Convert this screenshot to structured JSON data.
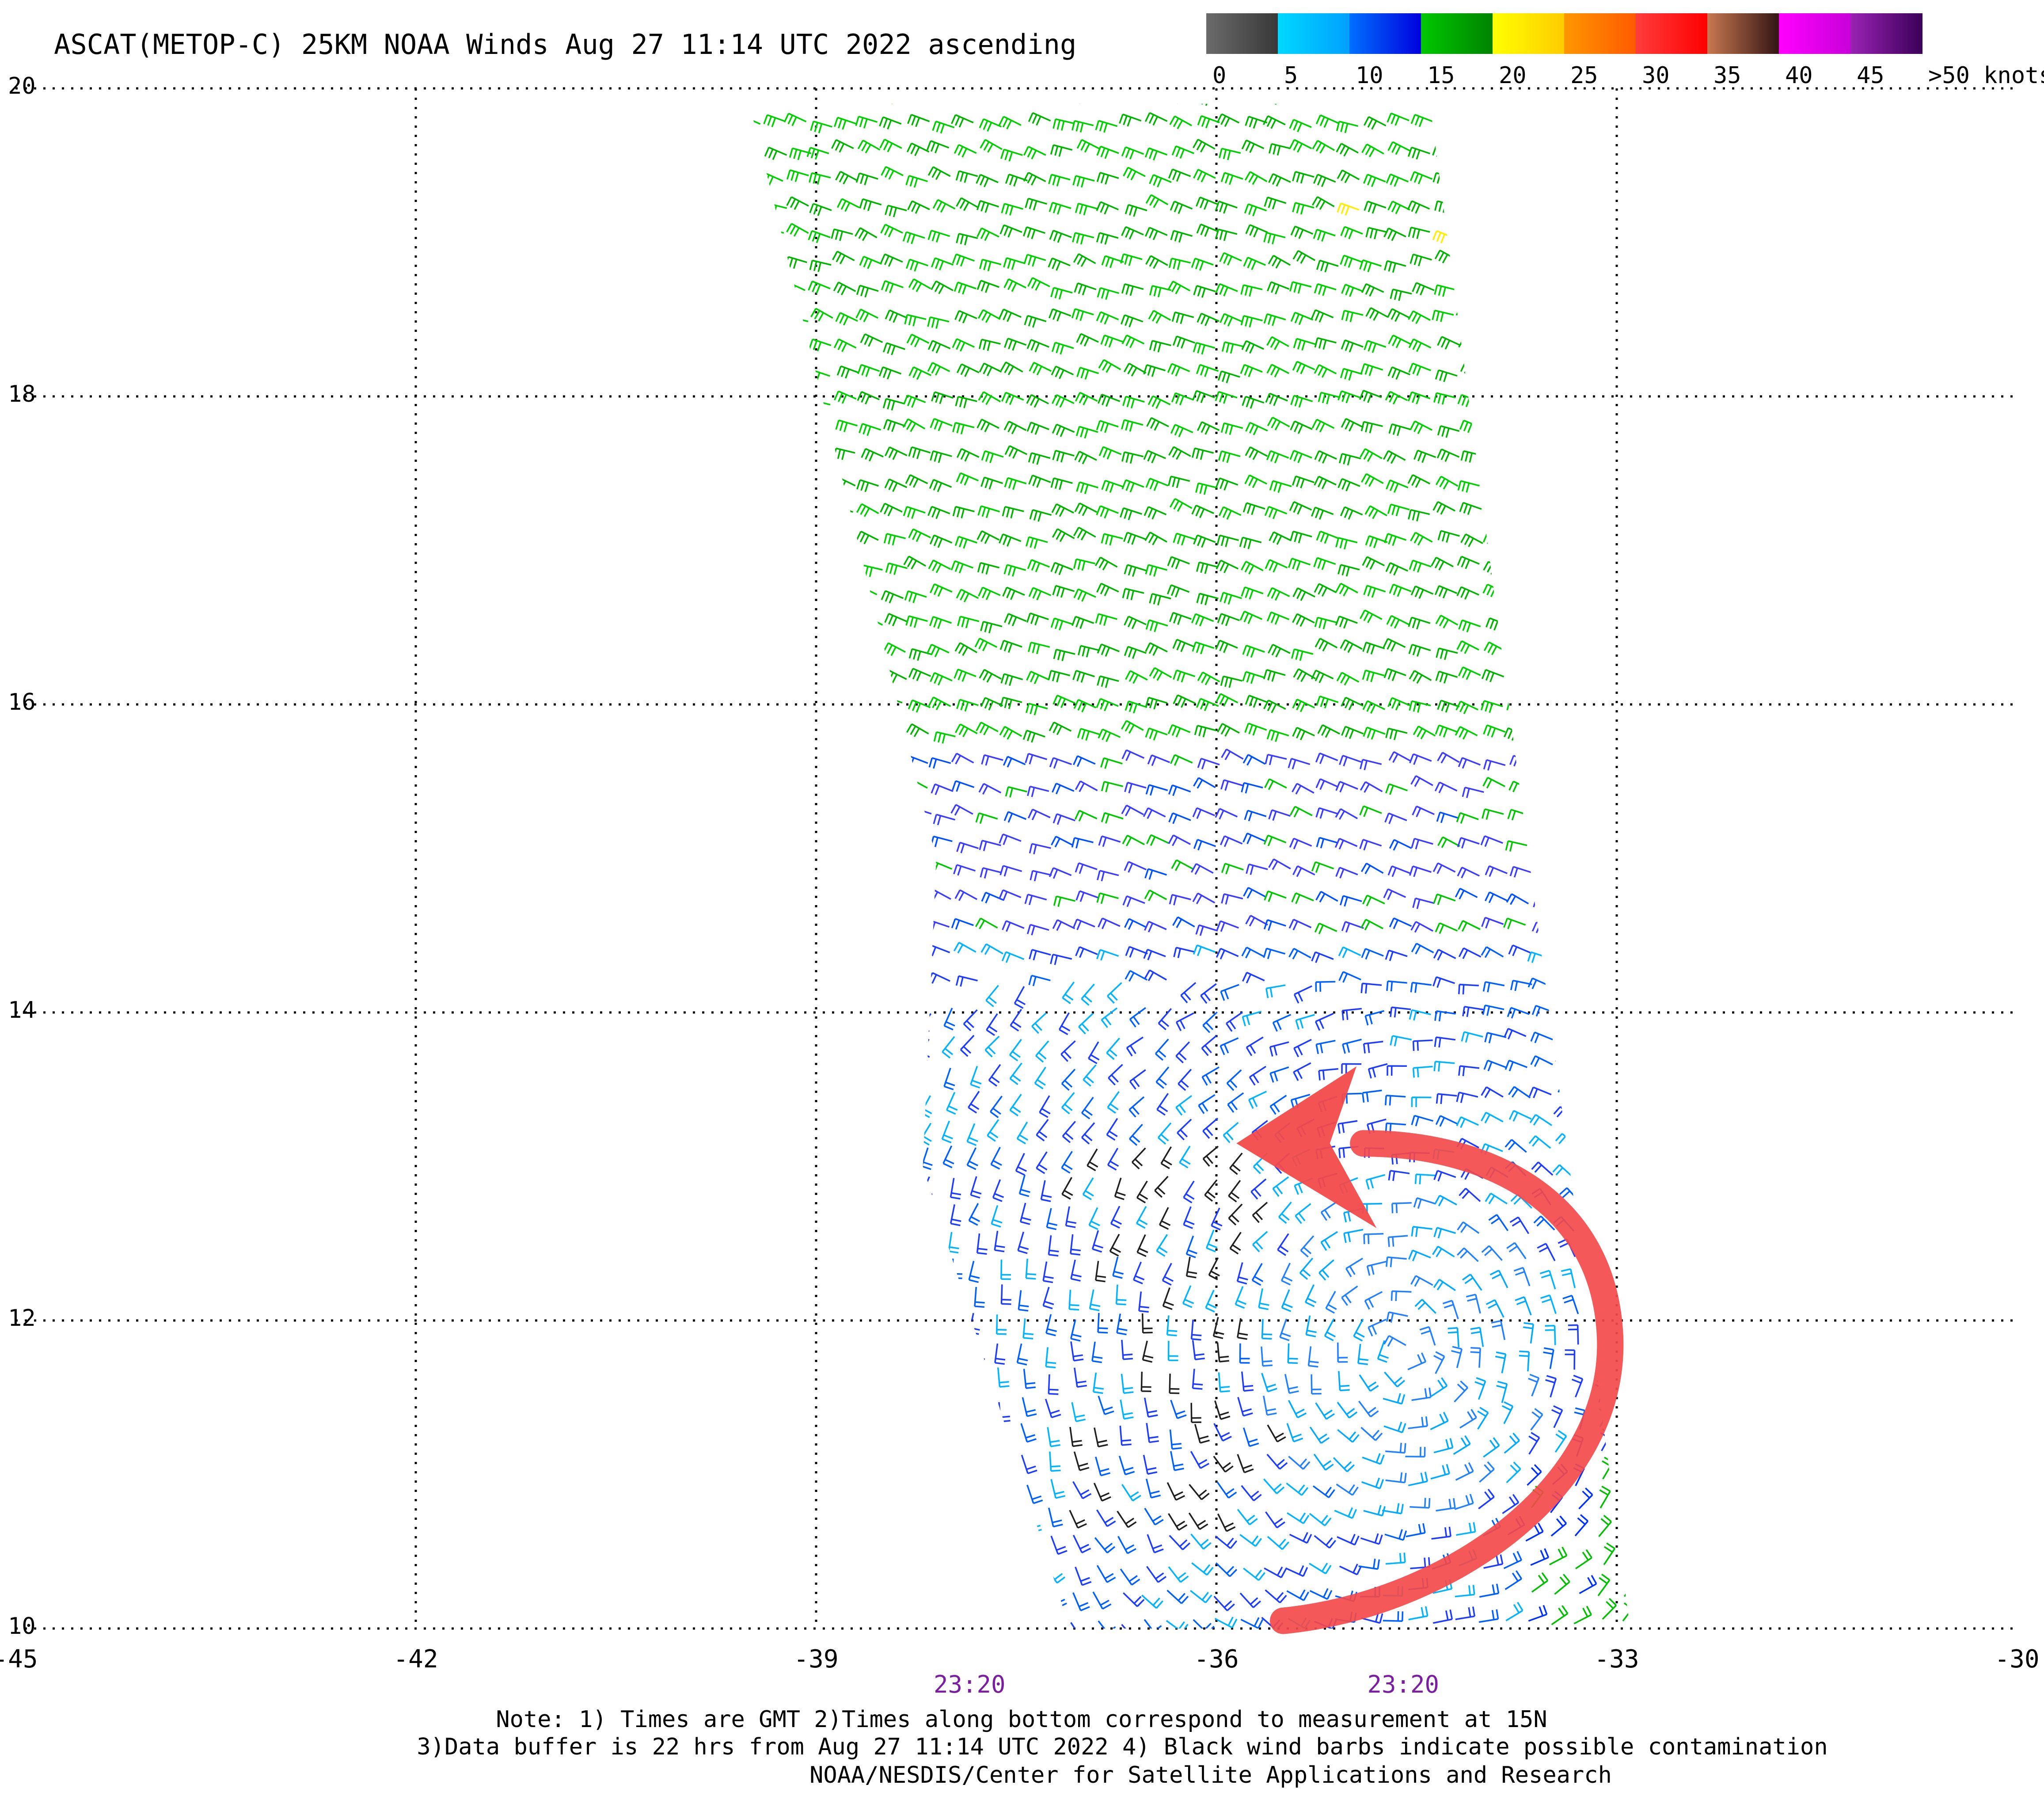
{
  "title": "ASCAT(METOP-C) 25KM NOAA Winds Aug 27 11:14 UTC 2022 ascending",
  "colorbar": {
    "labels": [
      "0",
      "5",
      "10",
      "15",
      "20",
      "25",
      "30",
      "35",
      "40",
      "45",
      ">50 knots"
    ],
    "segments": [
      {
        "from": "#6b6b6b",
        "to": "#383838"
      },
      {
        "from": "#00d8ff",
        "to": "#00a0ff"
      },
      {
        "from": "#0070ff",
        "to": "#0000dd"
      },
      {
        "from": "#00c800",
        "to": "#008200"
      },
      {
        "from": "#ffff00",
        "to": "#ffcc00"
      },
      {
        "from": "#ff9600",
        "to": "#ff5a00"
      },
      {
        "from": "#ff3c3c",
        "to": "#ff0000"
      },
      {
        "from": "#c87850",
        "to": "#321414"
      },
      {
        "from": "#ff00ff",
        "to": "#c800d8"
      },
      {
        "from": "#9a22b4",
        "to": "#3a0058"
      }
    ]
  },
  "map": {
    "lon_min": -45,
    "lon_max": -30,
    "lat_min": 10,
    "lat_max": 20,
    "x_ticks": [
      {
        "value": -45,
        "label": "-45"
      },
      {
        "value": -42,
        "label": "-42"
      },
      {
        "value": -39,
        "label": "-39"
      },
      {
        "value": -36,
        "label": "-36"
      },
      {
        "value": -33,
        "label": "-33"
      },
      {
        "value": -30,
        "label": "-30"
      }
    ],
    "y_ticks": [
      {
        "value": 20,
        "label": "20"
      },
      {
        "value": 18,
        "label": "18"
      },
      {
        "value": 16,
        "label": "16"
      },
      {
        "value": 14,
        "label": "14"
      },
      {
        "value": 12,
        "label": "12"
      },
      {
        "value": 10,
        "label": "10"
      }
    ],
    "grid": "dotted",
    "pass_times": [
      {
        "lon": -37.85,
        "label": "23:20"
      },
      {
        "lon": -34.6,
        "label": "23:20"
      }
    ],
    "time_label_color": "#7a1fa0",
    "swath_polygon": [
      [
        -39.5,
        19.9
      ],
      [
        -34.4,
        19.9
      ],
      [
        -32.9,
        10.0
      ],
      [
        -37.1,
        10.0
      ],
      [
        -38.2,
        13.0
      ],
      [
        -38.1,
        15.0
      ]
    ],
    "circulation_center": {
      "lon": -34.6,
      "lat": 11.8
    },
    "annotation_color": "#f34a4a"
  },
  "notes": {
    "line1": "Note: 1) Times are GMT 2)Times along bottom correspond to measurement at 15N",
    "line2": "3)Data buffer is 22 hrs from Aug 27 11:14 UTC 2022 4) Black wind barbs indicate possible contamination",
    "line3": "NOAA/NESDIS/Center for Satellite Applications and Research"
  }
}
